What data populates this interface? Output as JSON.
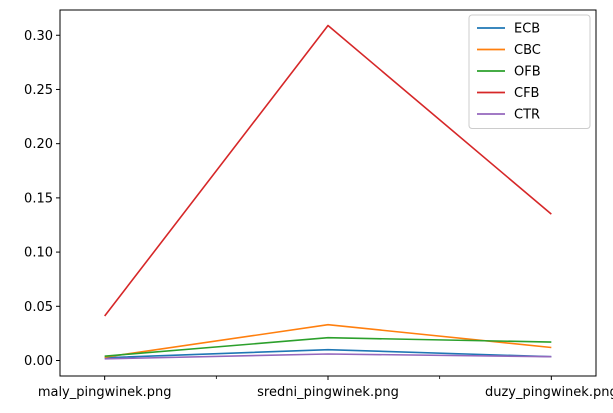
{
  "chart_data": {
    "type": "line",
    "categories": [
      "maly_pingwinek.png",
      "sredni_pingwinek.png",
      "duzy_pingwinek.png"
    ],
    "series": [
      {
        "name": "ECB",
        "color": "#1f77b4",
        "values": [
          0.0025,
          0.01,
          0.0035
        ]
      },
      {
        "name": "CBC",
        "color": "#ff7f0e",
        "values": [
          0.003,
          0.033,
          0.012
        ]
      },
      {
        "name": "OFB",
        "color": "#2ca02c",
        "values": [
          0.004,
          0.021,
          0.017
        ]
      },
      {
        "name": "CFB",
        "color": "#d62728",
        "values": [
          0.041,
          0.309,
          0.135
        ]
      },
      {
        "name": "CTR",
        "color": "#9467bd",
        "values": [
          0.0015,
          0.006,
          0.0035
        ]
      }
    ],
    "yticks": [
      0.0,
      0.05,
      0.1,
      0.15,
      0.2,
      0.25,
      0.3
    ],
    "ytick_labels": [
      "0.00",
      "0.05",
      "0.10",
      "0.15",
      "0.20",
      "0.25",
      "0.30"
    ],
    "ylim": [
      -0.0143,
      0.3233
    ],
    "xlim": [
      -0.2,
      2.2
    ],
    "minor_xticks": [
      0.5,
      1.5
    ],
    "title": "",
    "xlabel": "",
    "ylabel": "",
    "grid": false,
    "legend_position": "top-right"
  }
}
